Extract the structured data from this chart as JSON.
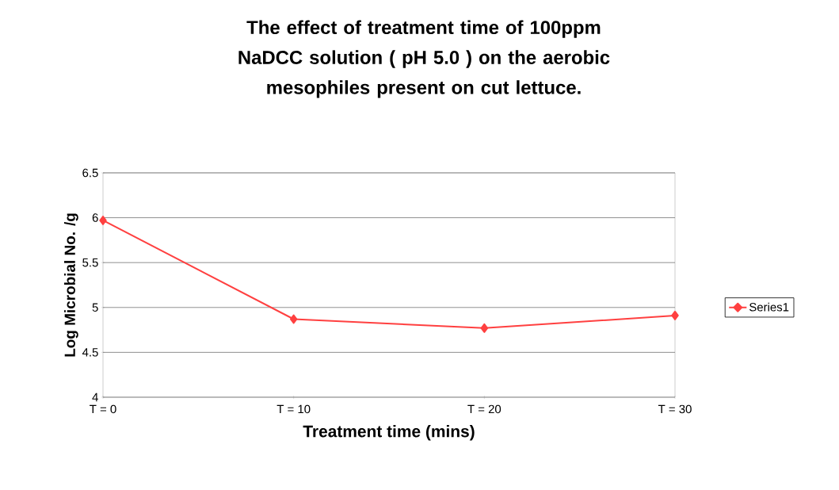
{
  "chart_data": {
    "type": "line",
    "title": "The effect of treatment time of 100ppm NaDCC solution ( pH 5.0 ) on the aerobic mesophiles present on cut lettuce.",
    "xlabel": "Treatment time (mins)",
    "ylabel": "Log Microbial No. /g",
    "categories": [
      "T = 0",
      "T = 10",
      "T = 20",
      "T = 30"
    ],
    "series": [
      {
        "name": "Series1",
        "color": "#ff4040",
        "values": [
          5.97,
          4.87,
          4.77,
          4.91
        ]
      }
    ],
    "ylim": [
      4,
      6.5
    ],
    "yticks": [
      4,
      4.5,
      5,
      5.5,
      6,
      6.5
    ],
    "grid": "y",
    "legend": "right",
    "marker": "diamond",
    "line_style": "solid"
  }
}
